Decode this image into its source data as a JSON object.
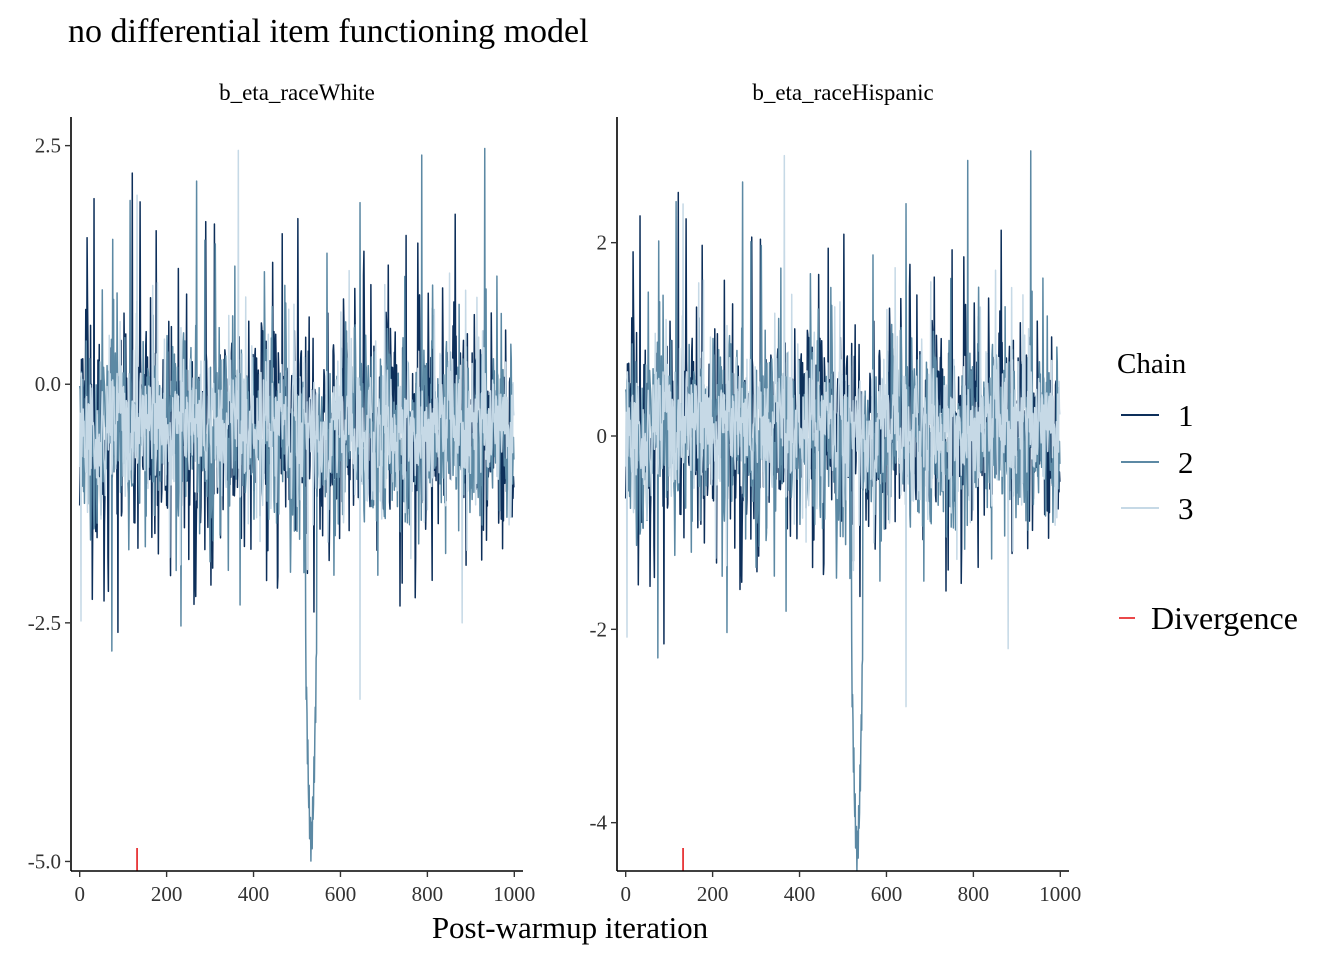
{
  "title": "no differential item functioning model",
  "chart_data": {
    "type": "line",
    "xlabel": "Post-warmup iteration",
    "iterations": 1000,
    "legend": {
      "title": "Chain",
      "placement": "right",
      "chains": [
        {
          "label": "1",
          "color": "#0d2f5a"
        },
        {
          "label": "2",
          "color": "#5c89a4"
        },
        {
          "label": "3",
          "color": "#c6d9e6"
        }
      ],
      "divergence_label": "Divergence",
      "divergence_color": "#e41a1c"
    },
    "divergences": [
      132
    ],
    "panels": [
      {
        "name": "b_eta_raceWhite",
        "xlim": [
          -20,
          1020
        ],
        "ylim": [
          -5.1,
          2.8
        ],
        "xticks": [
          0,
          200,
          400,
          600,
          800,
          1000
        ],
        "yticks": [
          -5.0,
          -2.5,
          0.0,
          2.5
        ],
        "ytick_labels": [
          "-5.0",
          "-2.5",
          "0.0",
          "2.5"
        ],
        "chain_means": [
          -0.45,
          -0.45,
          -0.45
        ],
        "chain_sd": [
          0.55,
          0.5,
          0.35
        ],
        "features": {
          "chain2_dip": {
            "from": 520,
            "to": 545,
            "min": -4.75
          },
          "spikes": [
            {
              "chain": 3,
              "x": 3,
              "y": -2.48
            },
            {
              "chain": 1,
              "x": 88,
              "y": -2.6
            },
            {
              "chain": 3,
              "x": 132,
              "y": 1.98
            },
            {
              "chain": 3,
              "x": 365,
              "y": 2.45
            },
            {
              "chain": 3,
              "x": 645,
              "y": -3.3
            },
            {
              "chain": 2,
              "x": 787,
              "y": 2.4
            },
            {
              "chain": 2,
              "x": 932,
              "y": 2.47
            },
            {
              "chain": 3,
              "x": 880,
              "y": -2.5
            }
          ]
        }
      },
      {
        "name": "b_eta_raceHispanic",
        "xlim": [
          -20,
          1020
        ],
        "ylim": [
          -4.5,
          3.3
        ],
        "xticks": [
          0,
          200,
          400,
          600,
          800,
          1000
        ],
        "yticks": [
          -4,
          -2,
          0,
          2
        ],
        "ytick_labels": [
          "-4",
          "-2",
          "0",
          "2"
        ],
        "chain_means": [
          0.1,
          0.05,
          0.1
        ],
        "chain_sd": [
          0.5,
          0.5,
          0.35
        ],
        "features": {
          "chain2_dip": {
            "from": 520,
            "to": 545,
            "min": -4.25
          },
          "spikes": [
            {
              "chain": 3,
              "x": 3,
              "y": -2.08
            },
            {
              "chain": 1,
              "x": 88,
              "y": -2.15
            },
            {
              "chain": 3,
              "x": 132,
              "y": 2.4
            },
            {
              "chain": 3,
              "x": 365,
              "y": 2.9
            },
            {
              "chain": 3,
              "x": 645,
              "y": -2.8
            },
            {
              "chain": 2,
              "x": 787,
              "y": 2.85
            },
            {
              "chain": 2,
              "x": 932,
              "y": 2.95
            },
            {
              "chain": 3,
              "x": 880,
              "y": -2.2
            }
          ]
        }
      }
    ]
  }
}
